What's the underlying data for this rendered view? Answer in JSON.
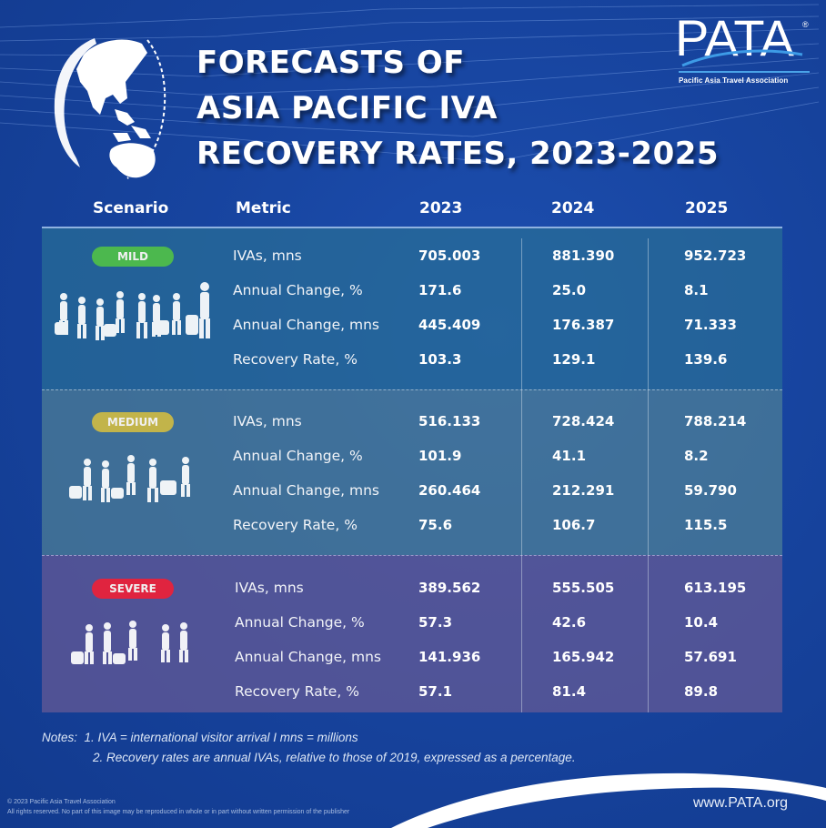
{
  "title": {
    "lines": [
      "FORECASTS OF",
      "ASIA PACIFIC IVA",
      "RECOVERY RATES, 2023-2025"
    ]
  },
  "logo": {
    "wordmark": "PATA",
    "registered": "®",
    "subtitle": "Pacific Asia Travel Association"
  },
  "table": {
    "headers": [
      "Scenario",
      "Metric",
      "2023",
      "2024",
      "2025"
    ],
    "scenarios": [
      {
        "name": "MILD",
        "color": "#4cb84e",
        "rows": [
          {
            "metric": "IVAs, mns",
            "values": [
              "705.003",
              "881.390",
              "952.723"
            ]
          },
          {
            "metric": "Annual Change, %",
            "values": [
              "171.6",
              "25.0",
              "8.1"
            ]
          },
          {
            "metric": "Annual Change, mns",
            "values": [
              "445.409",
              "176.387",
              "71.333"
            ]
          },
          {
            "metric": "Recovery Rate, %",
            "values": [
              "103.3",
              "129.1",
              "139.6"
            ]
          }
        ]
      },
      {
        "name": "MEDIUM",
        "color": "#c2b44a",
        "rows": [
          {
            "metric": "IVAs, mns",
            "values": [
              "516.133",
              "728.424",
              "788.214"
            ]
          },
          {
            "metric": "Annual Change, %",
            "values": [
              "101.9",
              "41.1",
              "8.2"
            ]
          },
          {
            "metric": "Annual Change, mns",
            "values": [
              "260.464",
              "212.291",
              "59.790"
            ]
          },
          {
            "metric": "Recovery Rate, %",
            "values": [
              "75.6",
              "106.7",
              "115.5"
            ]
          }
        ]
      },
      {
        "name": "SEVERE",
        "color": "#e0243f",
        "rows": [
          {
            "metric": "IVAs, mns",
            "values": [
              "389.562",
              "555.505",
              "613.195"
            ]
          },
          {
            "metric": "Annual Change, %",
            "values": [
              "57.3",
              "42.6",
              "10.4"
            ]
          },
          {
            "metric": "Annual Change, mns",
            "values": [
              "141.936",
              "165.942",
              "57.691"
            ]
          },
          {
            "metric": "Recovery Rate, %",
            "values": [
              "57.1",
              "81.4",
              "89.8"
            ]
          }
        ]
      }
    ]
  },
  "notes": {
    "label": "Notes:",
    "line1": "1. IVA = international visitor arrival I mns = millions",
    "line2": "2. Recovery rates are annual IVAs, relative to those of 2019, expressed as a percentage."
  },
  "copyright": {
    "line1": "© 2023 Pacific Asia Travel Association",
    "line2": "All rights reserved. No part of this image may be reproduced in whole or in part without written permission of the publisher"
  },
  "url": "www.PATA.org",
  "colors": {
    "background": "#17449f",
    "mild_band": "#2a6e96",
    "medium_band": "#50829a",
    "severe_band": "#645a96"
  }
}
